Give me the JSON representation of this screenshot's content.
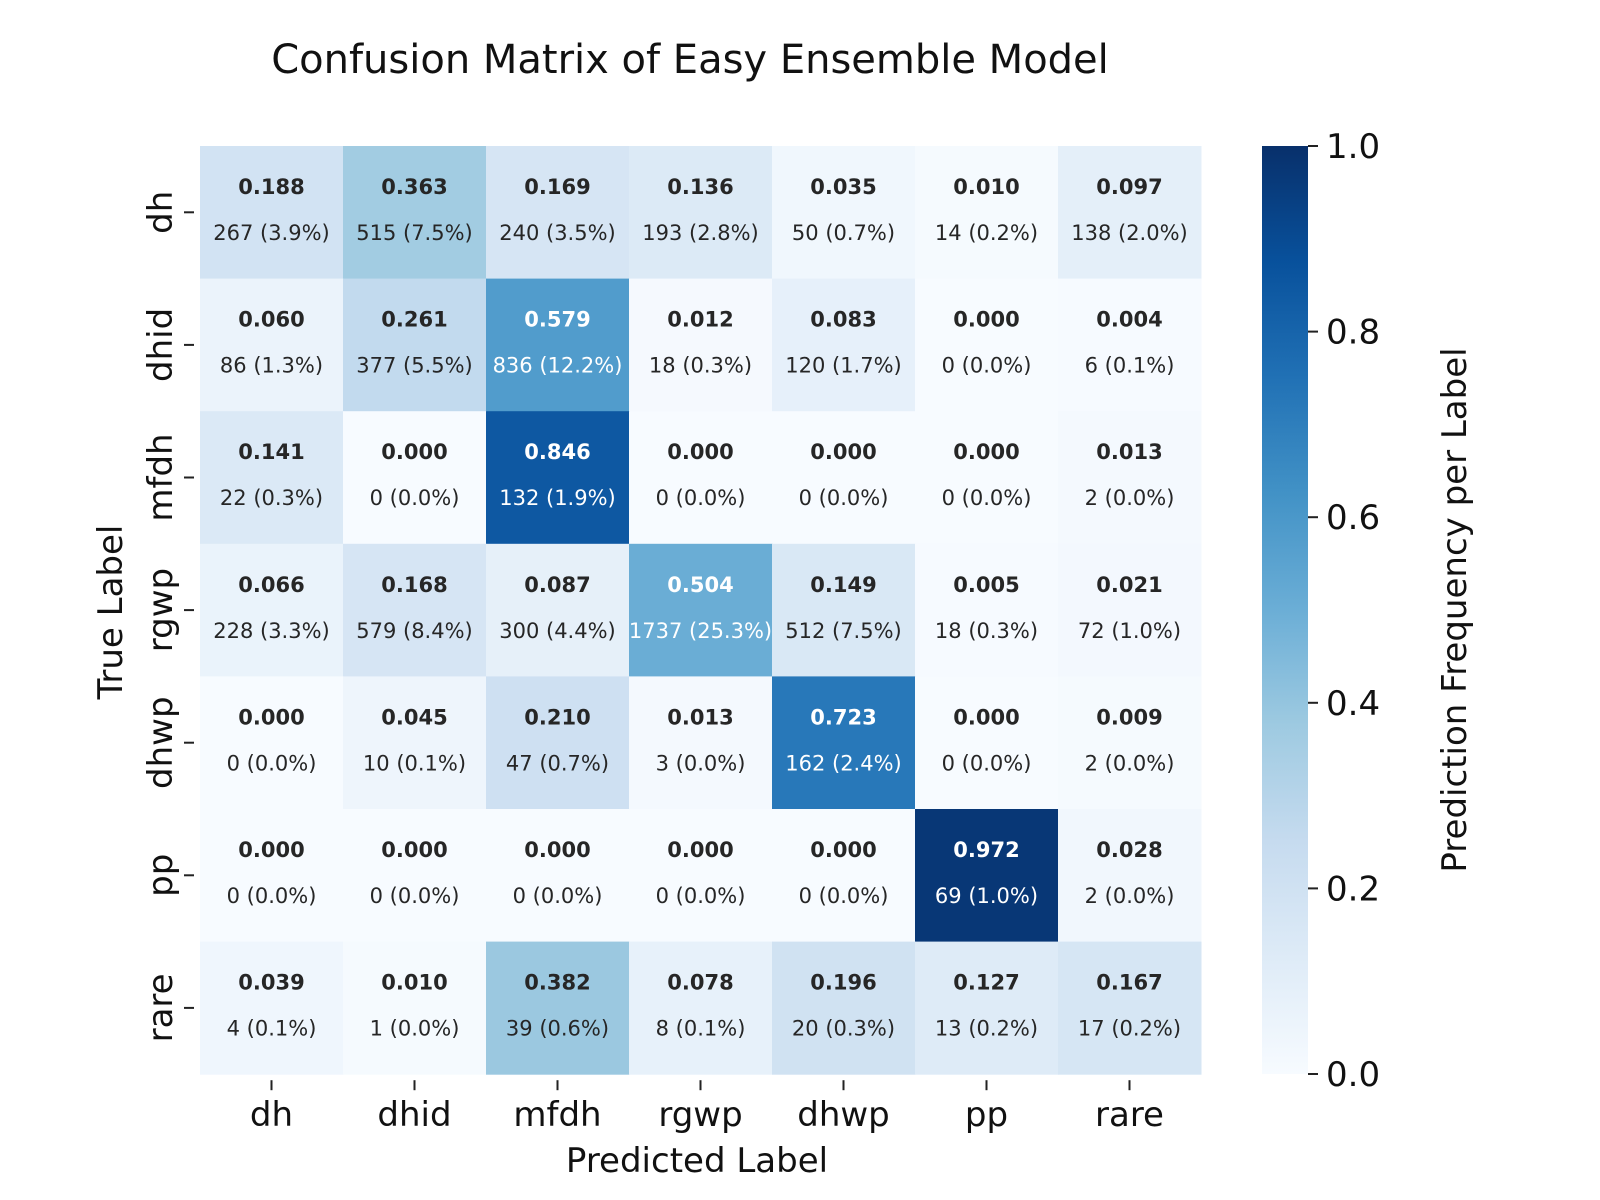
{
  "chart_data": {
    "type": "heatmap",
    "title": "Confusion Matrix of Easy Ensemble Model",
    "xlabel": "Predicted Label",
    "ylabel": "True Label",
    "x_categories": [
      "dh",
      "dhid",
      "mfdh",
      "rgwp",
      "dhwp",
      "pp",
      "rare"
    ],
    "y_categories": [
      "dh",
      "dhid",
      "mfdh",
      "rgwp",
      "dhwp",
      "pp",
      "rare"
    ],
    "values": [
      [
        0.188,
        0.363,
        0.169,
        0.136,
        0.035,
        0.01,
        0.097
      ],
      [
        0.06,
        0.261,
        0.579,
        0.012,
        0.083,
        0.0,
        0.004
      ],
      [
        0.141,
        0.0,
        0.846,
        0.0,
        0.0,
        0.0,
        0.013
      ],
      [
        0.066,
        0.168,
        0.087,
        0.504,
        0.149,
        0.005,
        0.021
      ],
      [
        0.0,
        0.045,
        0.21,
        0.013,
        0.723,
        0.0,
        0.009
      ],
      [
        0.0,
        0.0,
        0.0,
        0.0,
        0.0,
        0.972,
        0.028
      ],
      [
        0.039,
        0.01,
        0.382,
        0.078,
        0.196,
        0.127,
        0.167
      ]
    ],
    "value_labels": [
      [
        "0.188",
        "0.363",
        "0.169",
        "0.136",
        "0.035",
        "0.010",
        "0.097"
      ],
      [
        "0.060",
        "0.261",
        "0.579",
        "0.012",
        "0.083",
        "0.000",
        "0.004"
      ],
      [
        "0.141",
        "0.000",
        "0.846",
        "0.000",
        "0.000",
        "0.000",
        "0.013"
      ],
      [
        "0.066",
        "0.168",
        "0.087",
        "0.504",
        "0.149",
        "0.005",
        "0.021"
      ],
      [
        "0.000",
        "0.045",
        "0.210",
        "0.013",
        "0.723",
        "0.000",
        "0.009"
      ],
      [
        "0.000",
        "0.000",
        "0.000",
        "0.000",
        "0.000",
        "0.972",
        "0.028"
      ],
      [
        "0.039",
        "0.010",
        "0.382",
        "0.078",
        "0.196",
        "0.127",
        "0.167"
      ]
    ],
    "count_labels": [
      [
        "267 (3.9%)",
        "515 (7.5%)",
        "240 (3.5%)",
        "193 (2.8%)",
        "50 (0.7%)",
        "14 (0.2%)",
        "138 (2.0%)"
      ],
      [
        "86 (1.3%)",
        "377 (5.5%)",
        "836 (12.2%)",
        "18 (0.3%)",
        "120 (1.7%)",
        "0 (0.0%)",
        "6 (0.1%)"
      ],
      [
        "22 (0.3%)",
        "0 (0.0%)",
        "132 (1.9%)",
        "0 (0.0%)",
        "0 (0.0%)",
        "0 (0.0%)",
        "2 (0.0%)"
      ],
      [
        "228 (3.3%)",
        "579 (8.4%)",
        "300 (4.4%)",
        "1737 (25.3%)",
        "512 (7.5%)",
        "18 (0.3%)",
        "72 (1.0%)"
      ],
      [
        "0 (0.0%)",
        "10 (0.1%)",
        "47 (0.7%)",
        "3 (0.0%)",
        "162 (2.4%)",
        "0 (0.0%)",
        "2 (0.0%)"
      ],
      [
        "0 (0.0%)",
        "0 (0.0%)",
        "0 (0.0%)",
        "0 (0.0%)",
        "0 (0.0%)",
        "69 (1.0%)",
        "2 (0.0%)"
      ],
      [
        "4 (0.1%)",
        "1 (0.0%)",
        "39 (0.6%)",
        "8 (0.1%)",
        "20 (0.3%)",
        "13 (0.2%)",
        "17 (0.2%)"
      ]
    ],
    "colorbar": {
      "label": "Prediction Frequency per Label",
      "range": [
        0.0,
        1.0
      ],
      "ticks": [
        0.0,
        0.2,
        0.4,
        0.6,
        0.8,
        1.0
      ],
      "tick_labels": [
        "0.0",
        "0.2",
        "0.4",
        "0.6",
        "0.8",
        "1.0"
      ]
    },
    "colormap": "Blues",
    "colors": {
      "low": "#f7fbff",
      "high": "#08306b",
      "dark_text": "#262626",
      "light_text": "#ffffff"
    },
    "grid": false
  }
}
